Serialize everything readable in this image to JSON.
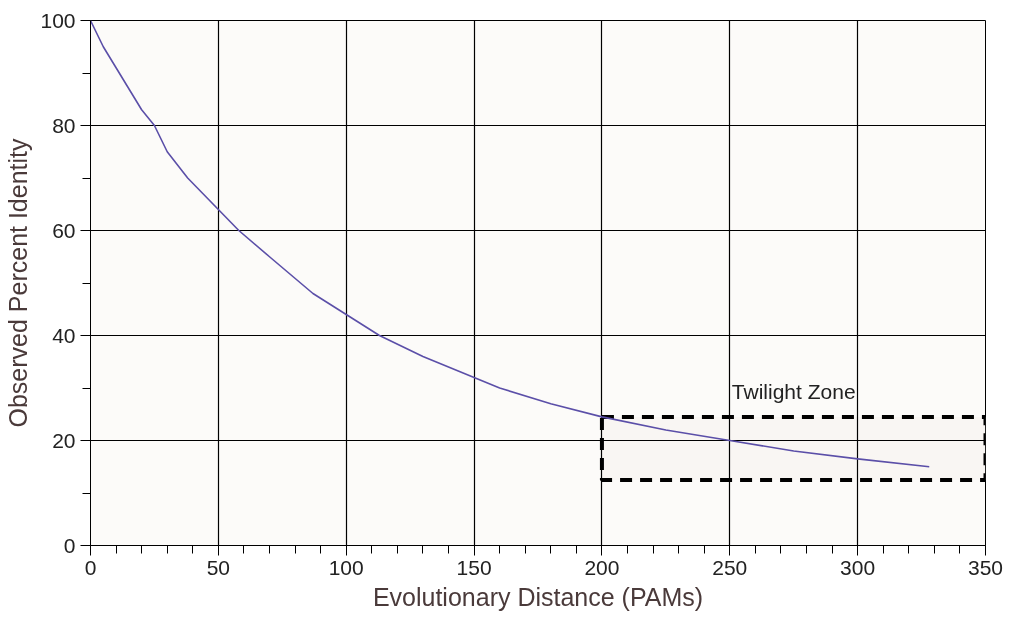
{
  "chart_data": {
    "type": "line",
    "xlabel": "Evolutionary Distance (PAMs)",
    "ylabel": "Observed Percent Identity",
    "x": [
      0,
      5,
      10,
      20,
      25,
      30,
      38,
      50,
      58,
      70,
      87,
      100,
      113,
      130,
      150,
      160,
      180,
      200,
      225,
      250,
      275,
      300,
      328
    ],
    "series": [
      {
        "color": "#5b4fa8",
        "values": [
          100,
          95,
          91,
          83,
          80,
          75,
          70,
          64,
          60,
          55,
          48,
          44,
          40,
          36,
          32,
          30,
          27,
          24.5,
          22,
          20,
          18,
          16.5,
          15
        ]
      }
    ],
    "xlim": [
      0,
      350
    ],
    "ylim": [
      0,
      100
    ],
    "xticks": [
      0,
      50,
      100,
      150,
      200,
      250,
      300,
      350
    ],
    "yticks": [
      0,
      20,
      40,
      60,
      80,
      100
    ],
    "bands": [
      {
        "axis": "y",
        "from": 12.5,
        "to": 24.5,
        "label": "Twilight Zone",
        "color": "#000000"
      }
    ],
    "grid": true,
    "marker": "none",
    "line_style": "solid"
  }
}
